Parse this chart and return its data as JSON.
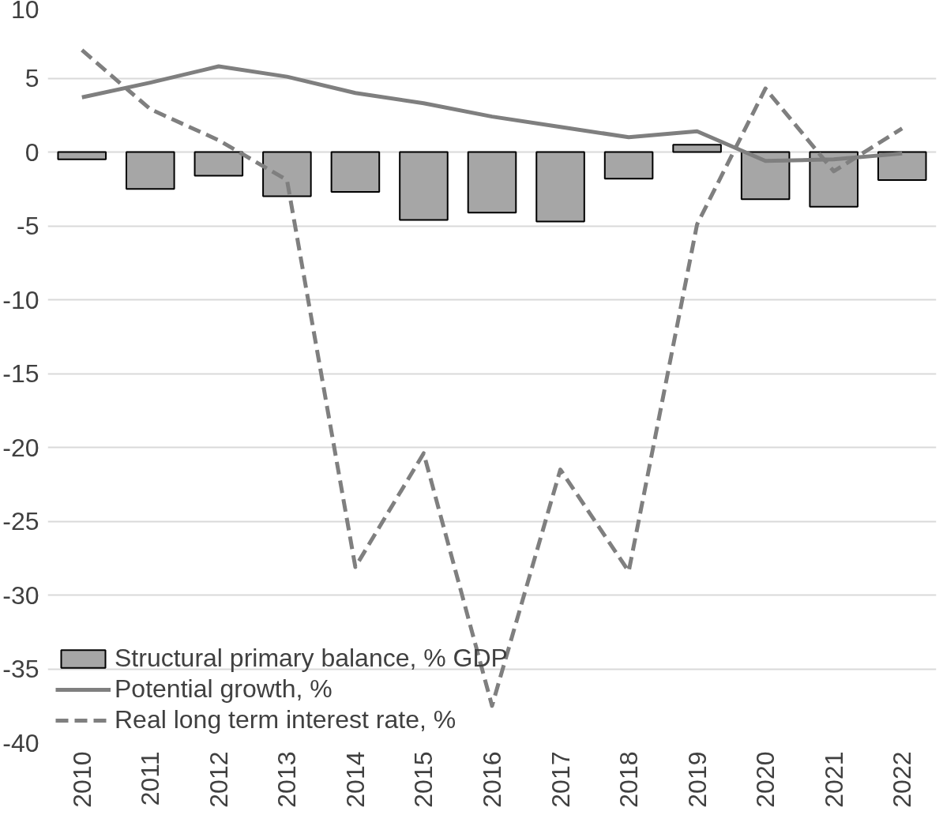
{
  "chart_data": {
    "type": "bar",
    "categories": [
      "2010",
      "2011",
      "2012",
      "2013",
      "2014",
      "2015",
      "2016",
      "2017",
      "2018",
      "2019",
      "2020",
      "2021",
      "2022"
    ],
    "series": [
      {
        "name": "Structural primary balance, % GDP",
        "color": "#a6a6a6",
        "values": [
          -0.5,
          -2.5,
          -1.6,
          -3.0,
          -2.7,
          -4.6,
          -4.1,
          -4.7,
          -1.8,
          0.5,
          -3.2,
          -3.7,
          -1.9
        ]
      },
      {
        "name": "Potential growth, %",
        "type": "line",
        "color": "#7f7f7f",
        "line_style": "solid",
        "values": [
          3.7,
          4.7,
          5.8,
          5.1,
          4.0,
          3.3,
          2.4,
          1.7,
          1.0,
          1.4,
          -0.6,
          -0.5,
          -0.1
        ]
      },
      {
        "name": "Real long term interest rate, %",
        "type": "line",
        "color": "#7f7f7f",
        "line_style": "dashed",
        "values": [
          6.9,
          2.9,
          0.8,
          -1.9,
          -28.1,
          -20.4,
          -37.5,
          -21.5,
          -28.4,
          -4.9,
          4.3,
          -1.3,
          1.6
        ]
      }
    ],
    "ylim": [
      -40,
      10
    ],
    "yticks": [
      -40,
      -35,
      -30,
      -25,
      -20,
      -15,
      -10,
      -5,
      0,
      5,
      10
    ],
    "grid": "y",
    "legend": "bottom left"
  }
}
